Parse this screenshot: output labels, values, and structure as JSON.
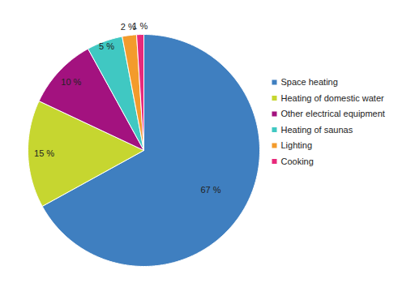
{
  "chart_data": {
    "type": "pie",
    "categories": [
      "Space heating",
      "Heating of domestic water",
      "Other electrical equipment",
      "Heating of saunas",
      "Lighting",
      "Cooking"
    ],
    "values": [
      67,
      15,
      10,
      5,
      2,
      1
    ],
    "value_labels": [
      "67 %",
      "15 %",
      "10 %",
      "5 %",
      "2 %",
      "1 %"
    ],
    "colors": [
      "#3f7fc0",
      "#c6d630",
      "#a3127f",
      "#40c8c2",
      "#f39b2c",
      "#e8297b"
    ],
    "data_labels": true,
    "legend": "right"
  }
}
